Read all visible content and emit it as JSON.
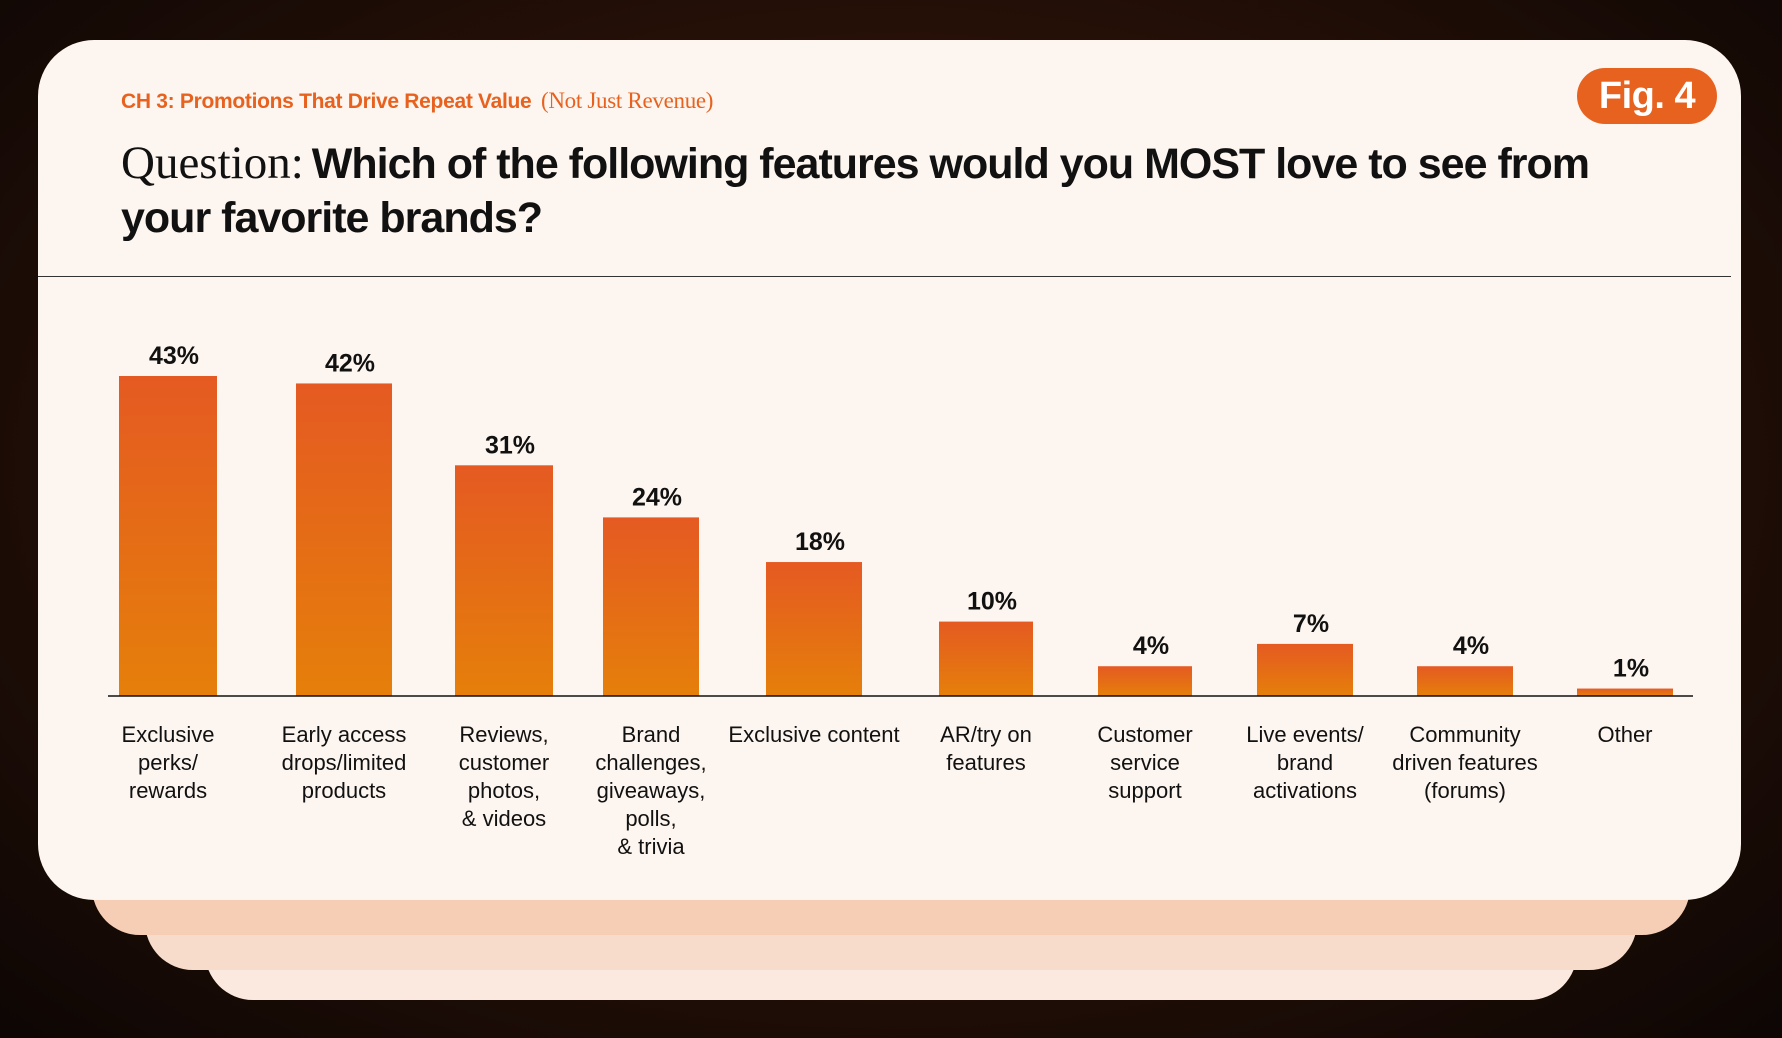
{
  "header": {
    "chapter_label": "CH 3: Promotions That Drive Repeat Value",
    "chapter_suffix": "(Not Just Revenue)",
    "figure_badge": "Fig. 4",
    "question_prefix": "Question:",
    "question_text": "Which of the following features would you MOST love to see from your favorite brands?"
  },
  "colors": {
    "accent": "#e8621f",
    "bar_top": "#e55a22",
    "bar_bottom": "#e57f0a",
    "card_bg": "#fdf5ef"
  },
  "chart_data": {
    "type": "bar",
    "title": "",
    "xlabel": "",
    "ylabel": "",
    "ylim": [
      0,
      45
    ],
    "grid": false,
    "categories": [
      "Exclusive perks/ rewards",
      "Early access drops/limited products",
      "Reviews, customer photos, & videos",
      "Brand challenges, giveaways, polls, & trivia",
      "Exclusive content",
      "AR/try on features",
      "Customer service support",
      "Live events/ brand activations",
      "Community driven features (forums)",
      "Other"
    ],
    "category_lines": [
      [
        "Exclusive",
        "perks/",
        "rewards"
      ],
      [
        "Early access",
        "drops/limited",
        "products"
      ],
      [
        "Reviews,",
        "customer",
        "photos,",
        "& videos"
      ],
      [
        "Brand",
        "challenges,",
        "giveaways,",
        "polls,",
        "& trivia"
      ],
      [
        "Exclusive content"
      ],
      [
        "AR/try on",
        "features"
      ],
      [
        "Customer",
        "service",
        "support"
      ],
      [
        "Live events/",
        "brand",
        "activations"
      ],
      [
        "Community",
        "driven features",
        "(forums)"
      ],
      [
        "Other"
      ]
    ],
    "values": [
      43,
      42,
      31,
      24,
      18,
      10,
      4,
      7,
      4,
      1
    ],
    "value_labels": [
      "43%",
      "42%",
      "31%",
      "24%",
      "18%",
      "10%",
      "4%",
      "7%",
      "4%",
      "1%"
    ]
  }
}
